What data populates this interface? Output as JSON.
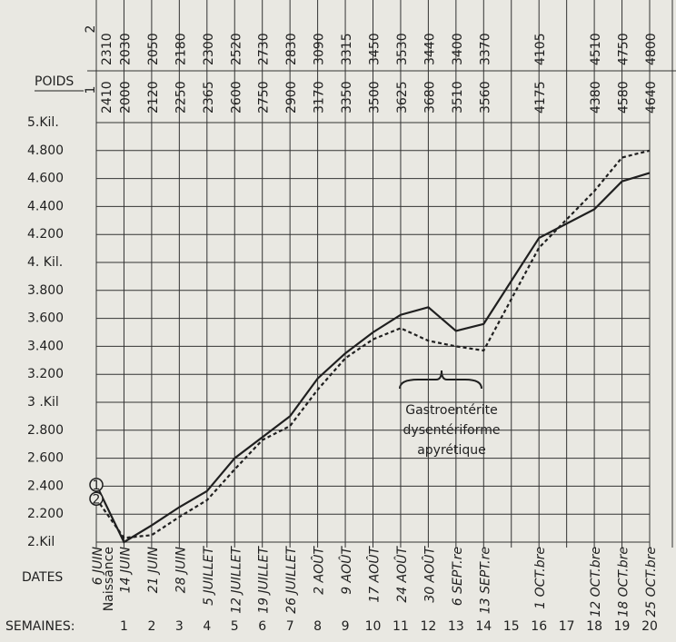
{
  "chart_data": {
    "type": "line",
    "weight_label": "POIDS",
    "dates_label": "DATES",
    "weeks_label": "SEMAINES:",
    "birth_label": "Naissance",
    "annotation": [
      "Gastroentérite",
      "dysentériforme",
      "apyrétique"
    ],
    "x": [
      0,
      1,
      2,
      3,
      4,
      5,
      6,
      7,
      8,
      9,
      10,
      11,
      12,
      13,
      14,
      16,
      18,
      19,
      20
    ],
    "xlim": [
      0,
      20
    ],
    "dates": [
      "6 JUIN",
      "14 JUIN",
      "21 JUIN",
      "28 JUIN",
      "5 JUILLET",
      "12 JUILLET",
      "19 JUILLET",
      "26 JUILLET",
      "2 AOÛT",
      "9 AOÛT",
      "17 AOÛT",
      "24 AOÛT",
      "30 AOÛT",
      "6 SEPT.re",
      "13 SEPT.re",
      "1 OCT.bre",
      "12 OCT.bre",
      "18 OCT.bre",
      "25 OCT.bre"
    ],
    "weeks": [
      1,
      2,
      3,
      4,
      5,
      6,
      7,
      8,
      9,
      10,
      11,
      12,
      13,
      14,
      15,
      16,
      17,
      18,
      19,
      20
    ],
    "series": [
      {
        "name": "1",
        "color": "#1f1f1f",
        "dashed": false,
        "values": [
          2410,
          2000,
          2120,
          2250,
          2365,
          2600,
          2750,
          2900,
          3170,
          3350,
          3500,
          3625,
          3680,
          3510,
          3560,
          4175,
          4380,
          4580,
          4640
        ]
      },
      {
        "name": "2",
        "color": "#1f1f1f",
        "dashed": true,
        "values": [
          2310,
          2030,
          2050,
          2180,
          2300,
          2520,
          2730,
          2830,
          3090,
          3315,
          3450,
          3530,
          3440,
          3400,
          3370,
          4105,
          4510,
          4750,
          4800
        ]
      }
    ],
    "ylim": [
      2000,
      5000
    ],
    "yticks": [
      {
        "value": 2000,
        "label": "2.Kil"
      },
      {
        "value": 2200,
        "label": "2.200"
      },
      {
        "value": 2400,
        "label": "2.400"
      },
      {
        "value": 2600,
        "label": "2.600"
      },
      {
        "value": 2800,
        "label": "2.800"
      },
      {
        "value": 3000,
        "label": "3 .Kil"
      },
      {
        "value": 3200,
        "label": "3.200"
      },
      {
        "value": 3400,
        "label": "3.400"
      },
      {
        "value": 3600,
        "label": "3.600"
      },
      {
        "value": 3800,
        "label": "3.800"
      },
      {
        "value": 4000,
        "label": "4. Kil."
      },
      {
        "value": 4200,
        "label": "4.200"
      },
      {
        "value": 4400,
        "label": "4.400"
      },
      {
        "value": 4600,
        "label": "4.600"
      },
      {
        "value": 4800,
        "label": "4.800"
      },
      {
        "value": 5000,
        "label": "5.Kil."
      }
    ],
    "grid": true
  }
}
